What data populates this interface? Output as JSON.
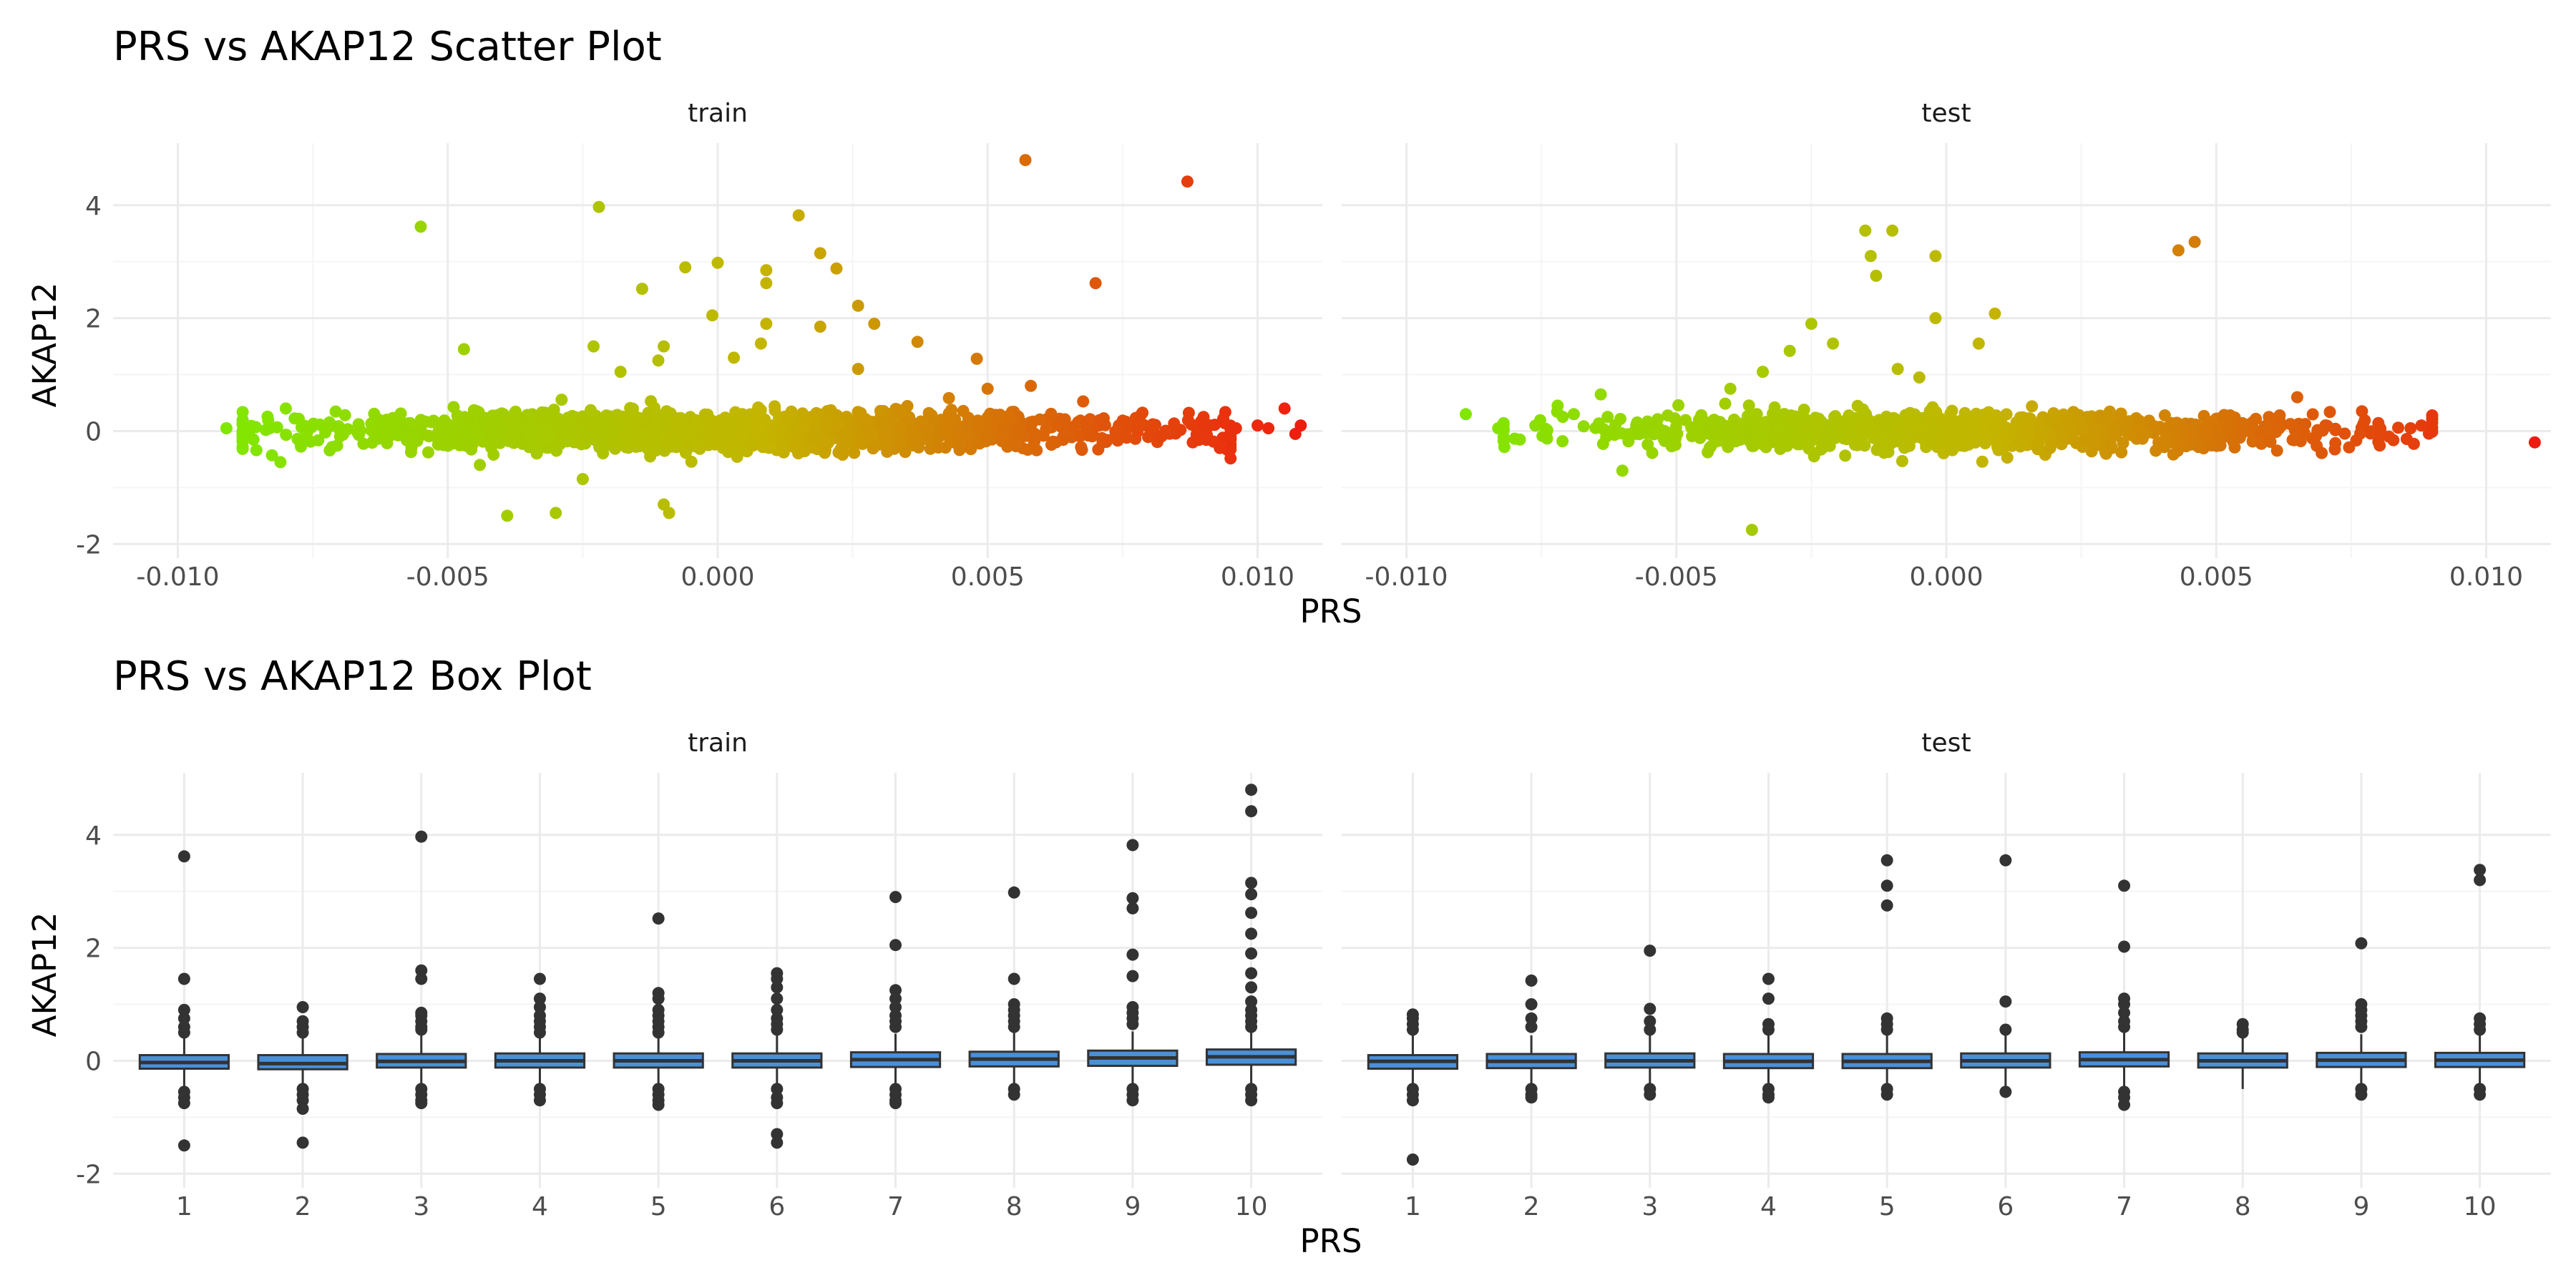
{
  "colors": {
    "background": "#ffffff",
    "grid_major": "#ebebeb",
    "grid_minor": "#f5f5f5",
    "gradient_low": "#7fe800",
    "gradient_mid": "#c4b400",
    "gradient_high": "#f01a10",
    "box_fill": "#4a90d9",
    "box_line": "#333333",
    "outlier": "#333333"
  },
  "chart_data": [
    {
      "type": "scatter",
      "title": "PRS vs AKAP12 Scatter Plot",
      "xlabel": "PRS",
      "ylabel": "AKAP12",
      "facets": [
        "train",
        "test"
      ],
      "xlim": [
        -0.0112,
        0.0112
      ],
      "ylim": [
        -2.25,
        5.1
      ],
      "x_ticks": [
        -0.01,
        -0.005,
        0.0,
        0.005,
        0.01
      ],
      "x_tick_labels": [
        "-0.010",
        "-0.005",
        "0.000",
        "0.005",
        "0.010"
      ],
      "y_ticks": [
        -2,
        0,
        2,
        4
      ],
      "y_tick_labels": [
        "-2",
        "0",
        "2",
        "4"
      ],
      "color_by": "PRS",
      "grid": true,
      "legend": "none",
      "cluster": {
        "train": {
          "x_range": [
            -0.0088,
            0.0095
          ],
          "y_range": [
            -0.45,
            0.45
          ],
          "n": 1800
        },
        "test": {
          "x_range": [
            -0.0082,
            0.009
          ],
          "y_range": [
            -0.45,
            0.45
          ],
          "n": 1000
        }
      },
      "series": [
        {
          "facet": "train",
          "points": [
            [
              -0.0091,
              0.05
            ],
            [
              -0.0088,
              0.2
            ],
            [
              -0.0086,
              -0.15
            ],
            [
              -0.0083,
              0.05
            ],
            [
              -0.0081,
              -0.55
            ],
            [
              -0.008,
              0.4
            ],
            [
              -0.0055,
              3.62
            ],
            [
              -0.0047,
              1.45
            ],
            [
              -0.0039,
              -1.5
            ],
            [
              -0.003,
              -1.45
            ],
            [
              -0.0025,
              -0.85
            ],
            [
              -0.0023,
              1.5
            ],
            [
              -0.0022,
              3.97
            ],
            [
              -0.0018,
              1.05
            ],
            [
              -0.0014,
              2.52
            ],
            [
              -0.0011,
              1.25
            ],
            [
              -0.001,
              1.5
            ],
            [
              -0.001,
              -1.3
            ],
            [
              -0.0009,
              -1.45
            ],
            [
              -0.0006,
              2.9
            ],
            [
              0.0,
              2.98
            ],
            [
              -0.0001,
              2.05
            ],
            [
              0.0003,
              1.3
            ],
            [
              0.0008,
              1.55
            ],
            [
              0.0009,
              1.9
            ],
            [
              0.0009,
              2.85
            ],
            [
              0.0009,
              2.62
            ],
            [
              0.0015,
              3.82
            ],
            [
              0.0019,
              3.15
            ],
            [
              0.0019,
              1.85
            ],
            [
              0.0022,
              2.88
            ],
            [
              0.0026,
              2.22
            ],
            [
              0.0029,
              1.9
            ],
            [
              0.0026,
              1.1
            ],
            [
              0.0037,
              1.58
            ],
            [
              0.0048,
              1.28
            ],
            [
              0.0057,
              4.8
            ],
            [
              0.007,
              2.62
            ],
            [
              0.0087,
              4.42
            ],
            [
              0.0058,
              0.8
            ],
            [
              0.005,
              0.75
            ],
            [
              0.0088,
              -0.2
            ],
            [
              0.009,
              0.25
            ],
            [
              0.0093,
              -0.3
            ],
            [
              0.0096,
              0.05
            ],
            [
              0.01,
              0.1
            ],
            [
              0.0102,
              0.05
            ],
            [
              0.0105,
              0.4
            ],
            [
              0.0107,
              -0.05
            ],
            [
              0.0108,
              0.1
            ]
          ]
        },
        {
          "facet": "test",
          "points": [
            [
              -0.0089,
              0.3
            ],
            [
              -0.0083,
              0.05
            ],
            [
              -0.0079,
              -0.15
            ],
            [
              -0.0072,
              0.45
            ],
            [
              -0.0069,
              0.3
            ],
            [
              -0.0064,
              0.65
            ],
            [
              -0.006,
              -0.7
            ],
            [
              -0.0036,
              -1.75
            ],
            [
              -0.004,
              0.75
            ],
            [
              -0.0034,
              1.05
            ],
            [
              -0.0029,
              1.42
            ],
            [
              -0.0025,
              1.9
            ],
            [
              -0.0021,
              1.55
            ],
            [
              -0.0015,
              3.55
            ],
            [
              -0.0014,
              3.1
            ],
            [
              -0.0013,
              2.75
            ],
            [
              -0.001,
              3.55
            ],
            [
              -0.0009,
              1.1
            ],
            [
              -0.0005,
              0.95
            ],
            [
              -0.0002,
              3.1
            ],
            [
              -0.0002,
              2.0
            ],
            [
              0.0006,
              1.55
            ],
            [
              0.0009,
              2.08
            ],
            [
              0.0043,
              3.2
            ],
            [
              0.0046,
              3.35
            ],
            [
              0.0065,
              0.6
            ],
            [
              0.0077,
              0.35
            ],
            [
              0.0082,
              -0.1
            ],
            [
              0.0086,
              0.05
            ],
            [
              0.0088,
              0.1
            ],
            [
              0.009,
              0.15
            ],
            [
              0.0109,
              -0.2
            ]
          ]
        }
      ]
    },
    {
      "type": "box",
      "title": "PRS vs AKAP12 Box Plot",
      "xlabel": "PRS",
      "ylabel": "AKAP12",
      "facets": [
        "train",
        "test"
      ],
      "categories": [
        "1",
        "2",
        "3",
        "4",
        "5",
        "6",
        "7",
        "8",
        "9",
        "10"
      ],
      "ylim": [
        -2.25,
        5.1
      ],
      "y_ticks": [
        -2,
        0,
        2,
        4
      ],
      "y_tick_labels": [
        "-2",
        "0",
        "2",
        "4"
      ],
      "grid": true,
      "legend": "none",
      "series": [
        {
          "facet": "train",
          "boxes": [
            {
              "q1": -0.14,
              "median": -0.03,
              "q3": 0.1,
              "whisker_low": -0.5,
              "whisker_high": 0.45,
              "outliers": [
                3.62,
                1.45,
                0.9,
                0.75,
                0.6,
                0.5,
                -0.55,
                -0.65,
                -0.75,
                -1.5
              ]
            },
            {
              "q1": -0.15,
              "median": -0.05,
              "q3": 0.1,
              "whisker_low": -0.5,
              "whisker_high": 0.4,
              "outliers": [
                0.95,
                0.7,
                0.6,
                0.5,
                -0.5,
                -0.6,
                -0.7,
                -0.85,
                -1.45
              ]
            },
            {
              "q1": -0.12,
              "median": -0.01,
              "q3": 0.12,
              "whisker_low": -0.48,
              "whisker_high": 0.45,
              "outliers": [
                3.97,
                1.6,
                1.45,
                0.85,
                0.8,
                0.7,
                0.6,
                0.55,
                -0.5,
                -0.6,
                -0.7,
                -0.75
              ]
            },
            {
              "q1": -0.12,
              "median": 0.0,
              "q3": 0.13,
              "whisker_low": -0.48,
              "whisker_high": 0.45,
              "outliers": [
                1.45,
                1.1,
                0.95,
                0.8,
                0.7,
                0.6,
                0.5,
                -0.5,
                -0.6,
                -0.7
              ]
            },
            {
              "q1": -0.12,
              "median": 0.0,
              "q3": 0.13,
              "whisker_low": -0.48,
              "whisker_high": 0.45,
              "outliers": [
                2.52,
                1.2,
                1.1,
                0.9,
                0.8,
                0.7,
                0.6,
                0.5,
                -0.5,
                -0.6,
                -0.7,
                -0.78
              ]
            },
            {
              "q1": -0.12,
              "median": 0.0,
              "q3": 0.13,
              "whisker_low": -0.48,
              "whisker_high": 0.45,
              "outliers": [
                1.55,
                1.45,
                1.3,
                1.1,
                0.9,
                0.75,
                0.65,
                0.55,
                -0.5,
                -0.65,
                -0.75,
                -1.3,
                -1.45
              ]
            },
            {
              "q1": -0.11,
              "median": 0.02,
              "q3": 0.15,
              "whisker_low": -0.47,
              "whisker_high": 0.48,
              "outliers": [
                2.9,
                2.05,
                1.25,
                1.1,
                0.95,
                0.8,
                0.7,
                0.6,
                -0.5,
                -0.6,
                -0.7,
                -0.75
              ]
            },
            {
              "q1": -0.1,
              "median": 0.03,
              "q3": 0.16,
              "whisker_low": -0.46,
              "whisker_high": 0.5,
              "outliers": [
                2.98,
                1.45,
                1.0,
                0.9,
                0.8,
                0.7,
                0.6,
                -0.5,
                -0.6
              ]
            },
            {
              "q1": -0.09,
              "median": 0.05,
              "q3": 0.18,
              "whisker_low": -0.45,
              "whisker_high": 0.52,
              "outliers": [
                3.82,
                2.88,
                2.7,
                1.88,
                1.5,
                0.95,
                0.85,
                0.75,
                0.65,
                -0.5,
                -0.6,
                -0.7
              ]
            },
            {
              "q1": -0.07,
              "median": 0.07,
              "q3": 0.2,
              "whisker_low": -0.45,
              "whisker_high": 0.55,
              "outliers": [
                4.8,
                4.42,
                3.15,
                2.95,
                2.62,
                2.25,
                1.9,
                1.55,
                1.3,
                1.05,
                0.9,
                0.8,
                0.7,
                0.6,
                -0.5,
                -0.6,
                -0.7
              ]
            }
          ]
        },
        {
          "facet": "test",
          "boxes": [
            {
              "q1": -0.14,
              "median": -0.01,
              "q3": 0.1,
              "whisker_low": -0.5,
              "whisker_high": 0.45,
              "outliers": [
                0.82,
                0.75,
                0.65,
                0.55,
                -0.5,
                -0.6,
                -0.7,
                -1.75
              ]
            },
            {
              "q1": -0.13,
              "median": -0.01,
              "q3": 0.12,
              "whisker_low": -0.5,
              "whisker_high": 0.45,
              "outliers": [
                1.42,
                1.0,
                0.75,
                0.6,
                -0.5,
                -0.6,
                -0.65
              ]
            },
            {
              "q1": -0.12,
              "median": 0.0,
              "q3": 0.13,
              "whisker_low": -0.48,
              "whisker_high": 0.45,
              "outliers": [
                1.95,
                0.92,
                0.7,
                0.55,
                -0.5,
                -0.6
              ]
            },
            {
              "q1": -0.13,
              "median": -0.01,
              "q3": 0.12,
              "whisker_low": -0.5,
              "whisker_high": 0.45,
              "outliers": [
                1.45,
                1.1,
                0.65,
                0.55,
                -0.5,
                -0.6,
                -0.65
              ]
            },
            {
              "q1": -0.13,
              "median": -0.01,
              "q3": 0.12,
              "whisker_low": -0.5,
              "whisker_high": 0.45,
              "outliers": [
                3.55,
                3.1,
                2.75,
                0.75,
                0.65,
                0.55,
                -0.5,
                -0.6
              ]
            },
            {
              "q1": -0.12,
              "median": 0.0,
              "q3": 0.13,
              "whisker_low": -0.48,
              "whisker_high": 0.45,
              "outliers": [
                3.55,
                1.05,
                0.55,
                -0.55
              ]
            },
            {
              "q1": -0.1,
              "median": 0.02,
              "q3": 0.15,
              "whisker_low": -0.47,
              "whisker_high": 0.5,
              "outliers": [
                3.1,
                2.02,
                1.1,
                1.0,
                0.85,
                0.7,
                0.6,
                -0.55,
                -0.65,
                -0.78
              ]
            },
            {
              "q1": -0.12,
              "median": 0.0,
              "q3": 0.13,
              "whisker_low": -0.5,
              "whisker_high": 0.45,
              "outliers": [
                0.65,
                0.55,
                0.5
              ]
            },
            {
              "q1": -0.11,
              "median": 0.01,
              "q3": 0.14,
              "whisker_low": -0.48,
              "whisker_high": 0.47,
              "outliers": [
                2.08,
                1.0,
                0.9,
                0.8,
                0.7,
                0.6,
                -0.5,
                -0.6
              ]
            },
            {
              "q1": -0.11,
              "median": 0.01,
              "q3": 0.14,
              "whisker_low": -0.48,
              "whisker_high": 0.47,
              "outliers": [
                3.38,
                3.2,
                0.75,
                0.65,
                0.55,
                -0.5,
                -0.6
              ]
            }
          ]
        }
      ]
    }
  ]
}
